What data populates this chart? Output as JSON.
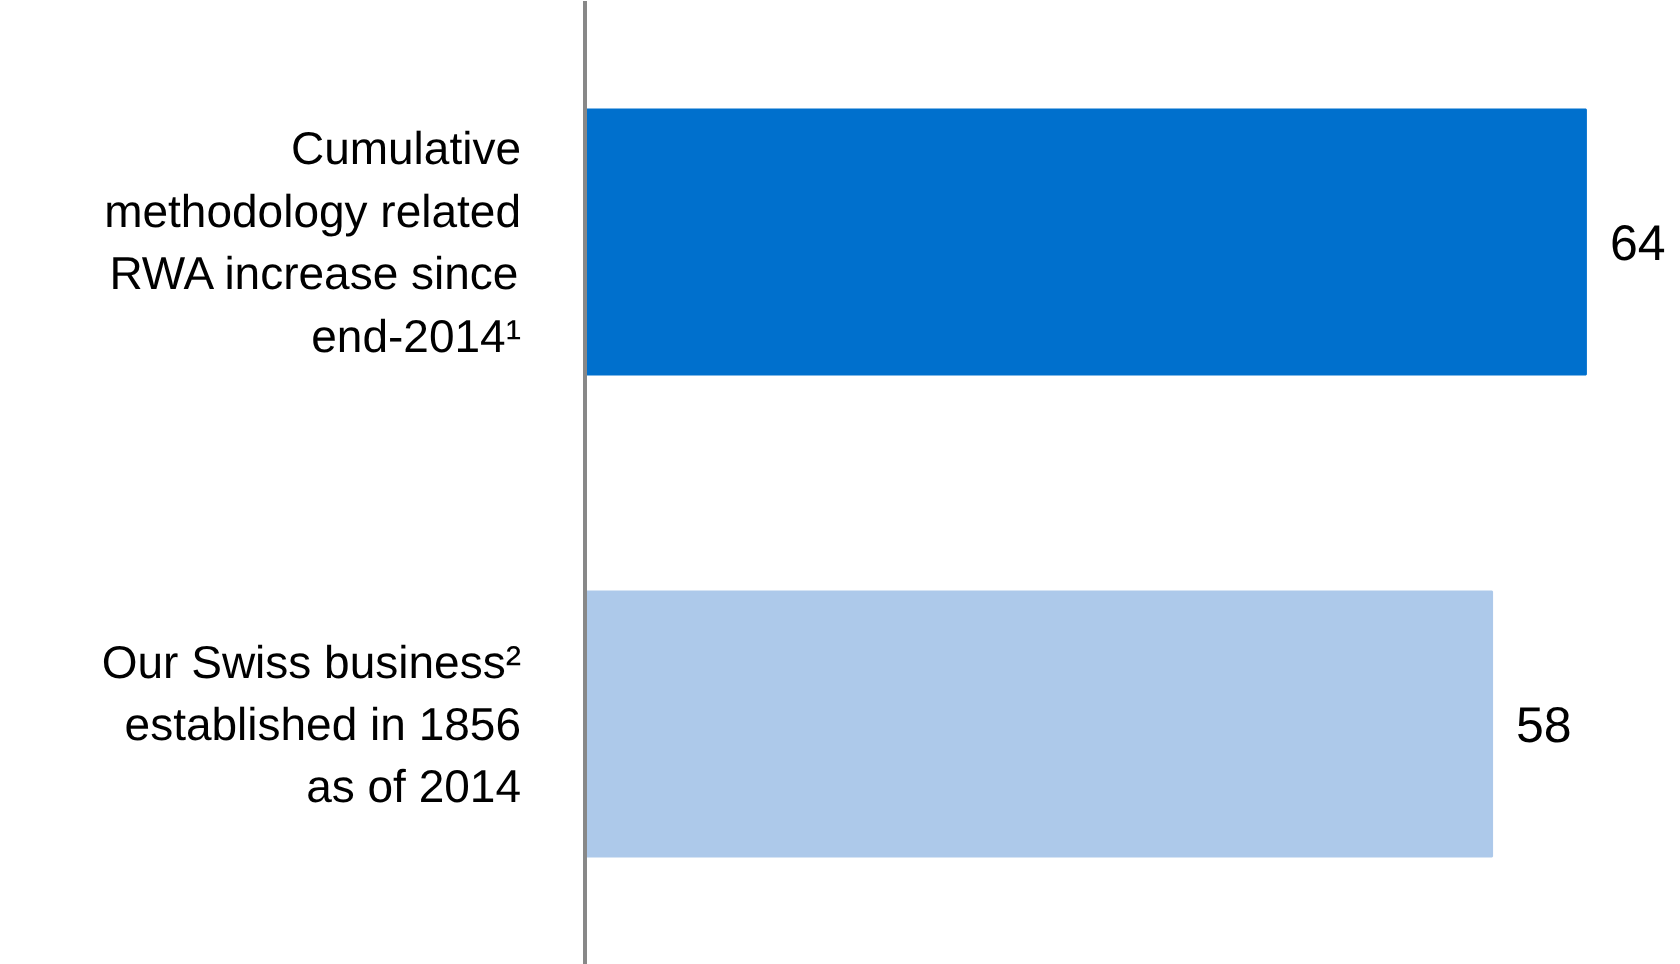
{
  "chart_data": {
    "type": "bar",
    "orientation": "horizontal",
    "categories": [
      "Cumulative methodology related RWA increase since end-2014¹",
      "Our Swiss business² established in 1856 as of 2014"
    ],
    "values": [
      64,
      58
    ],
    "colors": [
      "#0070cd",
      "#adc9ea"
    ],
    "data_labels": true
  }
}
